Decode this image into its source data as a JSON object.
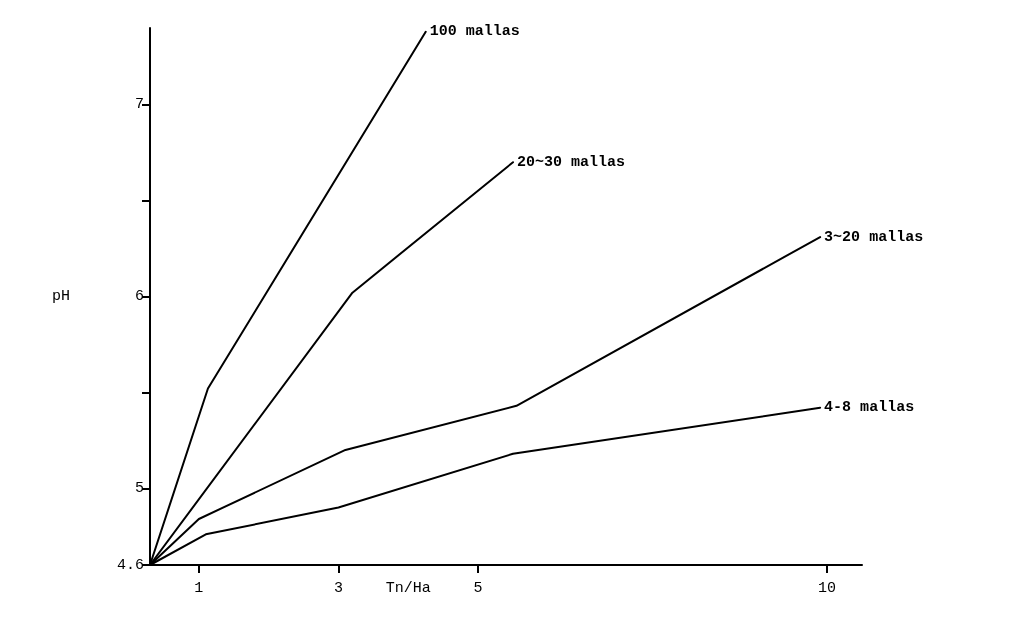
{
  "chart_data": {
    "type": "line",
    "xlabel": "Tn/Ha",
    "ylabel": "pH",
    "xlim": [
      0.3,
      10.5
    ],
    "xticks": [
      1,
      3,
      5,
      10
    ],
    "ylim": [
      4.6,
      7.4
    ],
    "yticks": [
      4.6,
      5,
      {
        "value": 5.5,
        "label": null
      },
      6,
      {
        "value": 6.5,
        "label": null
      },
      7
    ],
    "grid": false,
    "legend": false,
    "marker": "none",
    "line_style": "solid",
    "series": [
      {
        "name": "100 mallas",
        "color": "#000000",
        "x": [
          0.3,
          1.13,
          4.25
        ],
        "values": [
          4.6,
          5.52,
          7.38
        ]
      },
      {
        "name": "20~30 mallas",
        "color": "#000000",
        "x": [
          0.3,
          3.2,
          5.5
        ],
        "values": [
          4.6,
          6.02,
          6.7
        ]
      },
      {
        "name": "3~20 mallas",
        "color": "#000000",
        "x": [
          0.3,
          1.0,
          3.1,
          5.55,
          9.9
        ],
        "values": [
          4.6,
          4.84,
          5.2,
          5.43,
          6.31
        ]
      },
      {
        "name": "4-8 mallas",
        "color": "#000000",
        "x": [
          0.3,
          1.1,
          3.0,
          5.5,
          9.9
        ],
        "values": [
          4.6,
          4.76,
          4.9,
          5.18,
          5.42
        ]
      }
    ]
  }
}
